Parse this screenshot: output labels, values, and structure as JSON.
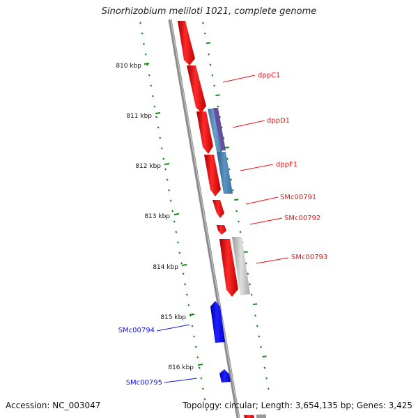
{
  "title": "Sinorhizobium meliloti 1021, complete genome",
  "footer": {
    "accession": "Accession: NC_003047",
    "summary": "Topology: circular; Length: 3,654,135 bp; Genes: 3,425"
  },
  "colors": {
    "forward_gene": "#ee1111",
    "reverse_gene": "#1111ee",
    "backbone": "#888888",
    "tick": "#118811",
    "overlay_steel": "#4d86b8",
    "overlay_purple": "#5a3f96",
    "overlay_gray": "#bdbdbd"
  },
  "kbp_ticks": [
    {
      "label": "810 kbp"
    },
    {
      "label": "811 kbp"
    },
    {
      "label": "812 kbp"
    },
    {
      "label": "813 kbp"
    },
    {
      "label": "814 kbp"
    },
    {
      "label": "815 kbp"
    },
    {
      "label": "816 kbp"
    }
  ],
  "gene_labels": [
    {
      "name": "dppC1",
      "strand": "forward"
    },
    {
      "name": "dppD1",
      "strand": "forward"
    },
    {
      "name": "dppF1",
      "strand": "forward"
    },
    {
      "name": "SMc00791",
      "strand": "forward"
    },
    {
      "name": "SMc00792",
      "strand": "forward"
    },
    {
      "name": "SMc00793",
      "strand": "forward"
    },
    {
      "name": "SMc00794",
      "strand": "reverse"
    },
    {
      "name": "SMc00795",
      "strand": "reverse"
    }
  ]
}
